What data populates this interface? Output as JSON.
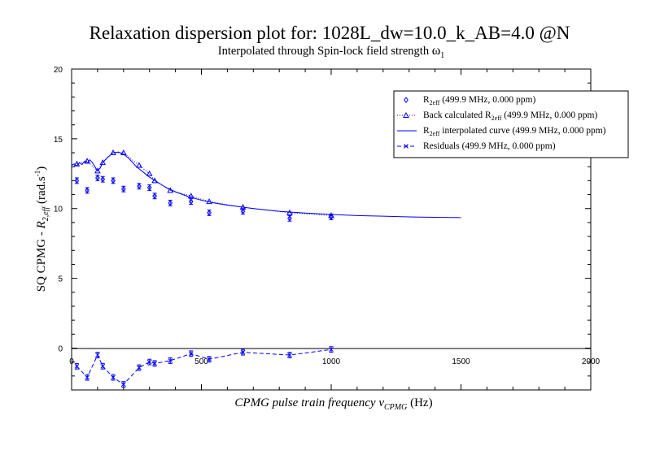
{
  "chart_data": {
    "type": "scatter",
    "title": "Relaxation dispersion plot for: 1028L_dw=10.0_k_AB=4.0 @N",
    "subtitle": {
      "text": "Interpolated through Spin-lock field strength ",
      "symbol": "ω",
      "sub": "1"
    },
    "xlabel": {
      "pre": "CPMG pulse train frequency ",
      "nu": "ν",
      "sub": "CPMG",
      "post": " (Hz)"
    },
    "ylabel": {
      "pre": "SQ CPMG - ",
      "r": "R",
      "sub": "2,eff",
      "post": " (rad.s",
      "sup": "-1",
      "end": ")"
    },
    "xlim": [
      0,
      2000
    ],
    "ylim": [
      -3,
      20
    ],
    "x_ticks": [
      "0",
      "500",
      "1000",
      "1500",
      "2000"
    ],
    "y_ticks": [
      "0",
      "5",
      "10",
      "15",
      "20"
    ],
    "grid": false,
    "legend_position": "top-right",
    "legend": [
      {
        "pre": "R",
        "sub": "2eff",
        "post": " (499.9 MHz, 0.000 ppm)"
      },
      {
        "pre": "Back calculated R",
        "sub": "2eff",
        "post": " (499.9 MHz, 0.000 ppm)"
      },
      {
        "pre": "R",
        "sub": "2eff",
        "post": " interpolated curve (499.9 MHz, 0.000 ppm)"
      },
      {
        "pre": "Residuals (499.9 MHz, 0.000 ppm)",
        "sub": "",
        "post": ""
      }
    ],
    "series": [
      {
        "name": "R2eff (499.9 MHz, 0.000 ppm)",
        "x": [
          20,
          60,
          100,
          120,
          160,
          200,
          260,
          300,
          320,
          380,
          460,
          530,
          660,
          840,
          1000
        ],
        "y": [
          12.0,
          11.3,
          12.2,
          12.1,
          12.0,
          11.4,
          11.6,
          11.5,
          10.9,
          10.4,
          10.5,
          9.7,
          9.8,
          9.3,
          9.4
        ],
        "err": [
          0.2,
          0.2,
          0.2,
          0.2,
          0.2,
          0.2,
          0.2,
          0.2,
          0.2,
          0.2,
          0.2,
          0.2,
          0.2,
          0.2,
          0.2
        ]
      },
      {
        "name": "Back calculated R2eff (499.9 MHz, 0.000 ppm)",
        "x": [
          20,
          60,
          100,
          120,
          160,
          200,
          260,
          300,
          320,
          380,
          460,
          530,
          660,
          840,
          1000
        ],
        "y": [
          13.2,
          13.4,
          12.7,
          13.3,
          14.0,
          14.0,
          13.1,
          12.5,
          12.0,
          11.3,
          10.9,
          10.5,
          10.1,
          9.7,
          9.5
        ]
      },
      {
        "name": "R2eff interpolated curve (499.9 MHz, 0.000 ppm)",
        "x": [
          0,
          10,
          20,
          30,
          40,
          50,
          60,
          70,
          80,
          90,
          100,
          110,
          120,
          140,
          160,
          180,
          200,
          220,
          250,
          280,
          300,
          330,
          360,
          400,
          450,
          500,
          550,
          600,
          700,
          800,
          900,
          1000,
          1100,
          1200,
          1300,
          1400,
          1500
        ],
        "y": [
          13.1,
          13.2,
          13.05,
          13.3,
          13.15,
          13.4,
          13.25,
          13.5,
          13.3,
          13.0,
          12.7,
          12.9,
          13.3,
          13.7,
          14.0,
          14.05,
          13.9,
          13.6,
          13.0,
          12.55,
          12.25,
          11.9,
          11.55,
          11.2,
          10.85,
          10.6,
          10.4,
          10.25,
          10.0,
          9.8,
          9.68,
          9.58,
          9.5,
          9.45,
          9.4,
          9.37,
          9.35
        ]
      },
      {
        "name": "Residuals (499.9 MHz, 0.000 ppm)",
        "x": [
          20,
          60,
          100,
          120,
          160,
          200,
          260,
          300,
          320,
          380,
          460,
          530,
          660,
          840,
          1000
        ],
        "y": [
          -1.3,
          -2.1,
          -0.5,
          -1.3,
          -2.1,
          -2.6,
          -1.4,
          -1.0,
          -1.1,
          -0.9,
          -0.4,
          -0.8,
          -0.3,
          -0.5,
          -0.1
        ],
        "err": [
          0.2,
          0.2,
          0.2,
          0.2,
          0.2,
          0.2,
          0.2,
          0.2,
          0.2,
          0.2,
          0.2,
          0.2,
          0.2,
          0.2,
          0.2
        ]
      }
    ],
    "colors": {
      "series": "#0000ff",
      "axes": "#000000"
    }
  }
}
